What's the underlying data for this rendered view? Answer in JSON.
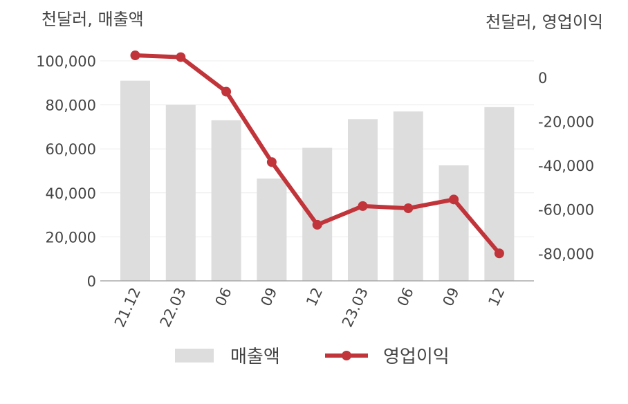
{
  "chart_data": {
    "type": "bar+line",
    "categories": [
      "21.12",
      "22.03",
      "06",
      "09",
      "12",
      "23.03",
      "06",
      "09",
      "12"
    ],
    "series": [
      {
        "name": "매출액",
        "type": "bar",
        "axis": "left",
        "color": "#dddddd",
        "values": [
          91000,
          80000,
          73000,
          46500,
          60500,
          73500,
          77000,
          52500,
          79000
        ]
      },
      {
        "name": "영업이익",
        "type": "line",
        "axis": "right",
        "color": "#c0343a",
        "values": [
          10000,
          9200,
          -6500,
          -38500,
          -67000,
          -58500,
          -59500,
          -55500,
          -80000
        ]
      }
    ],
    "left_axis": {
      "label": "천달러, 매출액",
      "ticks": [
        "0",
        "20,000",
        "40,000",
        "60,000",
        "80,000",
        "100,000"
      ],
      "tick_values": [
        0,
        20000,
        40000,
        60000,
        80000,
        100000
      ],
      "range": [
        0,
        100000
      ]
    },
    "right_axis": {
      "label": "천달러, 영업이익",
      "ticks": [
        "0",
        "-20,000",
        "-40,000",
        "-60,000",
        "-80,000"
      ],
      "tick_values": [
        0,
        -20000,
        -40000,
        -60000,
        -80000
      ],
      "range": [
        -92500,
        7500
      ]
    },
    "grid": true,
    "legend_position": "bottom"
  }
}
